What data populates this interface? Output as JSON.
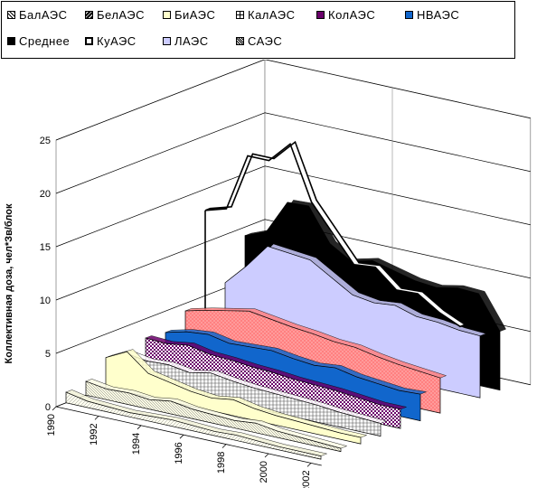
{
  "chart_data": {
    "type": "area",
    "view": "3d",
    "ylabel": "Коллективная доза, чел*Зв/блок",
    "xlabel": "",
    "ylim": [
      0,
      25
    ],
    "yticks": [
      "0",
      "5",
      "10",
      "15",
      "20",
      "25"
    ],
    "x_tick_labels": [
      "1990",
      "1992",
      "1994",
      "1996",
      "1998",
      "2000",
      "2002"
    ],
    "x": [
      1990,
      1991,
      1992,
      1993,
      1994,
      1995,
      1996,
      1997,
      1998,
      1999,
      2000,
      2001,
      2002
    ],
    "legend_placement": "top",
    "grid": true,
    "series": [
      {
        "name": "БалАЭС",
        "color": "#f2f2d8",
        "pattern": "hatch-light",
        "values": [
          1.0,
          0.6,
          0.5,
          0.4,
          0.5,
          0.6,
          0.5,
          0.4,
          0.5,
          0.4,
          0.3,
          0.3,
          0.3
        ]
      },
      {
        "name": "БелАЭС",
        "color": "#fbfbe4",
        "pattern": "hatch-dark",
        "values": [
          1.3,
          1.0,
          1.1,
          0.9,
          1.2,
          0.9,
          0.8,
          0.7,
          0.9,
          0.6,
          0.5,
          0.4,
          0.3
        ]
      },
      {
        "name": "БиАЭС",
        "color": "#ffffcc",
        "pattern": "solid",
        "values": [
          2.8,
          3.8,
          2.2,
          1.8,
          1.4,
          1.2,
          1.5,
          1.1,
          0.9,
          0.8,
          0.7,
          0.6,
          0.6
        ]
      },
      {
        "name": "КалАЭС",
        "color": "#ffffff",
        "pattern": "grid",
        "values": [
          2.5,
          2.2,
          2.3,
          2.0,
          2.4,
          2.1,
          1.9,
          1.8,
          1.7,
          1.6,
          1.4,
          1.3,
          1.2
        ]
      },
      {
        "name": "КолАЭС",
        "color": "#6a006a",
        "pattern": "checker",
        "values": [
          3.2,
          3.1,
          3.4,
          3.0,
          2.9,
          2.7,
          2.6,
          2.4,
          2.3,
          2.2,
          2.0,
          1.8,
          1.8
        ]
      },
      {
        "name": "НВАЭС",
        "color": "#1166cc",
        "pattern": "solid",
        "values": [
          3.0,
          3.5,
          3.7,
          3.3,
          3.4,
          3.5,
          3.2,
          3.0,
          3.2,
          2.8,
          2.6,
          2.4,
          2.5
        ]
      },
      {
        "name": "Среднее",
        "color": "#ff8080",
        "pattern": "dots",
        "values": [
          4.3,
          4.8,
          5.2,
          5.6,
          5.3,
          5.0,
          4.8,
          4.5,
          4.4,
          4.0,
          3.7,
          3.5,
          3.3
        ]
      },
      {
        "name": "КуАЭС",
        "color": "#ffffff",
        "pattern": "outline",
        "values": [
          13.0,
          13.6,
          19.0,
          19.0,
          21.0,
          16.0,
          13.5,
          11.0,
          11.2,
          9.5,
          9.6,
          8.3,
          7.4
        ]
      },
      {
        "name": "ЛАЭС",
        "color": "#ccccff",
        "pattern": "solid",
        "values": [
          5.5,
          7.5,
          9.8,
          9.6,
          9.4,
          8.2,
          7.0,
          6.7,
          6.9,
          6.3,
          6.2,
          5.9,
          5.8
        ]
      },
      {
        "name": "САЭС",
        "color": "#000000",
        "pattern": "solid",
        "values": [
          9.2,
          10.0,
          13.2,
          13.3,
          10.2,
          9.0,
          9.5,
          9.0,
          8.5,
          8.3,
          8.7,
          8.6,
          5.5
        ]
      }
    ]
  },
  "legend_rows": [
    [
      "БалАЭС",
      "БелАЭС",
      "БиАЭС",
      "КалАЭС",
      "КолАЭС",
      "НВАЭС"
    ],
    [
      "Среднее",
      "КуАЭС",
      "ЛАЭС",
      "САЭС"
    ]
  ]
}
